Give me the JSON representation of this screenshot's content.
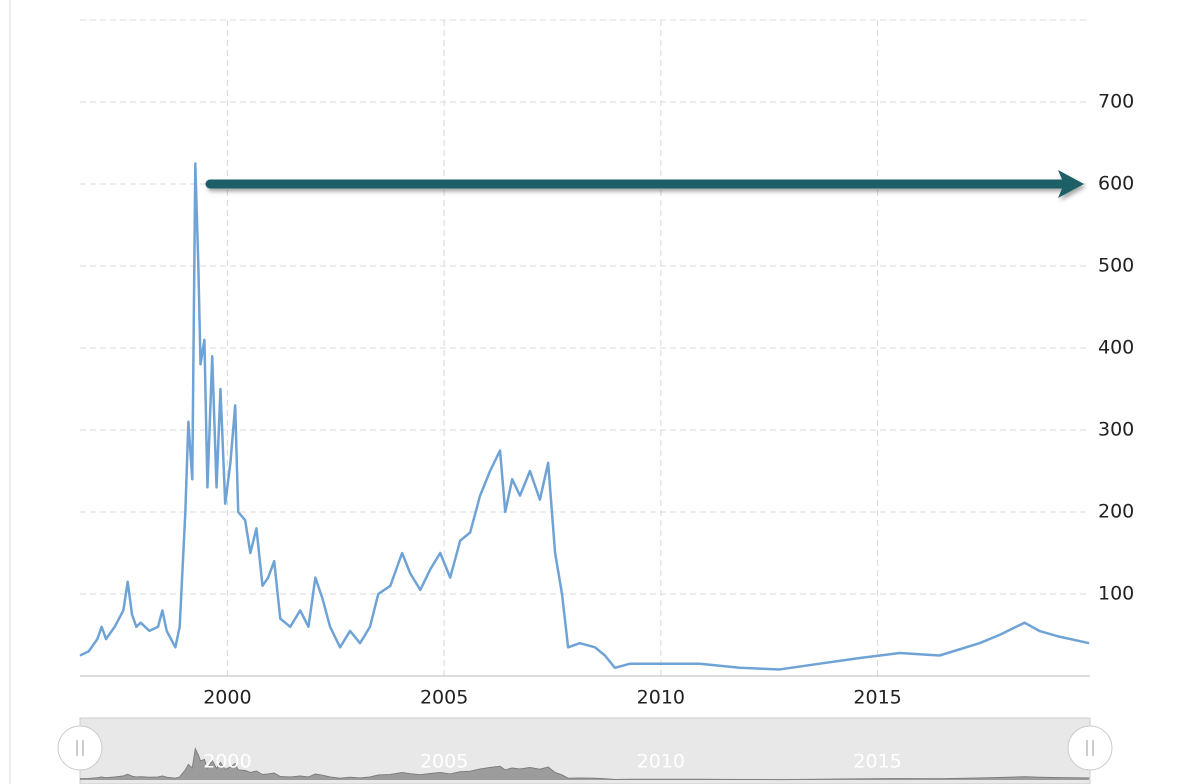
{
  "chart_data": {
    "type": "line",
    "x": [
      1996.6,
      1996.8,
      1997.0,
      1997.1,
      1997.2,
      1997.4,
      1997.6,
      1997.7,
      1997.8,
      1997.9,
      1998.0,
      1998.2,
      1998.4,
      1998.5,
      1998.6,
      1998.8,
      1998.9,
      1999.03,
      1999.1,
      1999.19,
      1999.26,
      1999.33,
      1999.38,
      1999.47,
      1999.54,
      1999.65,
      1999.75,
      1999.84,
      1999.95,
      2000.07,
      2000.18,
      2000.25,
      2000.41,
      2000.53,
      2000.67,
      2000.81,
      2000.94,
      2001.08,
      2001.22,
      2001.45,
      2001.68,
      2001.87,
      2002.03,
      2002.19,
      2002.37,
      2002.6,
      2002.83,
      2003.06,
      2003.29,
      2003.48,
      2003.76,
      2004.03,
      2004.22,
      2004.45,
      2004.68,
      2004.91,
      2005.14,
      2005.37,
      2005.6,
      2005.83,
      2006.06,
      2006.29,
      2006.41,
      2006.57,
      2006.75,
      2006.98,
      2007.21,
      2007.4,
      2007.56,
      2007.72,
      2007.86,
      2008.13,
      2008.48,
      2008.71,
      2008.94,
      2009.29,
      2010.0,
      2010.9,
      2011.82,
      2012.74,
      2013.66,
      2014.59,
      2015.51,
      2016.43,
      2017.35,
      2017.81,
      2018.39,
      2018.73,
      2019.19,
      2019.88
    ],
    "series": [
      {
        "color": "#6fa3d6",
        "values": [
          25,
          30,
          45,
          60,
          45,
          60,
          80,
          115,
          75,
          60,
          65,
          55,
          60,
          80,
          55,
          35,
          60,
          200,
          310,
          240,
          625,
          500,
          380,
          410,
          230,
          390,
          230,
          350,
          210,
          260,
          330,
          200,
          190,
          150,
          180,
          110,
          120,
          140,
          70,
          60,
          80,
          60,
          120,
          95,
          60,
          35,
          55,
          40,
          60,
          100,
          110,
          150,
          125,
          105,
          130,
          150,
          120,
          165,
          175,
          220,
          250,
          275,
          200,
          240,
          220,
          250,
          215,
          260,
          150,
          100,
          35,
          40,
          35,
          25,
          10,
          15,
          15,
          15,
          10,
          8,
          15,
          22,
          28,
          25,
          40,
          50,
          65,
          55,
          48,
          40
        ]
      }
    ],
    "xlim": [
      1996.6,
      2019.9
    ],
    "xticks": [
      2000,
      2005,
      2010,
      2015
    ],
    "ylim": [
      0,
      800
    ],
    "yticks": [
      100,
      200,
      300,
      400,
      500,
      600,
      700
    ],
    "grid": true
  }
}
